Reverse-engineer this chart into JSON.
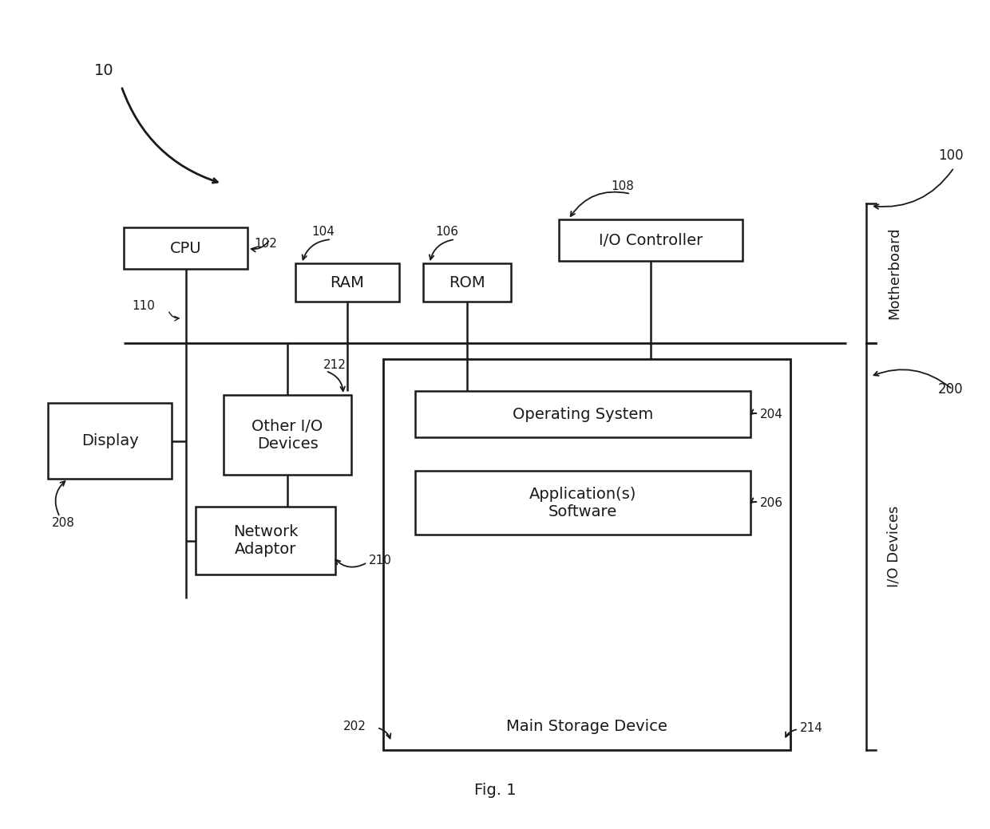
{
  "bg_color": "#ffffff",
  "line_color": "#1a1a1a",
  "box_fill": "#ffffff",
  "box_edge": "#1a1a1a",
  "fig_caption": "Fig. 1",
  "label_10": "10",
  "label_100": "100",
  "label_200": "200",
  "label_102": "102",
  "label_104": "104",
  "label_106": "106",
  "label_108": "108",
  "label_110": "110",
  "label_202": "202",
  "label_204": "204",
  "label_206": "206",
  "label_208": "208",
  "label_210": "210",
  "label_212": "212",
  "label_214": "214",
  "text_cpu": "CPU",
  "text_ram": "RAM",
  "text_rom": "ROM",
  "text_io_ctrl": "I/O Controller",
  "text_display": "Display",
  "text_other_io": "Other I/O\nDevices",
  "text_network": "Network\nAdaptor",
  "text_os": "Operating System",
  "text_app": "Application(s)\nSoftware",
  "text_storage": "Main Storage Device",
  "text_motherboard": "Motherboard",
  "text_io_devices": "I/O Devices",
  "font_size_box": 14,
  "font_size_label": 11,
  "font_size_caption": 14,
  "font_size_side": 13
}
